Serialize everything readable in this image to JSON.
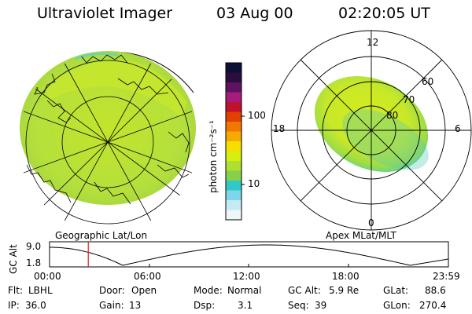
{
  "header": {
    "instrument": "Ultraviolet Imager",
    "date": "03 Aug 00",
    "time": "02:20:05 UT"
  },
  "colors": {
    "accent_line": "#e0201a",
    "image_fill": "#b7e33a",
    "image_dim": "#9ed13c",
    "background": "#ffffff"
  },
  "left_panel": {
    "label": "Geographic Lat/Lon"
  },
  "colorbar": {
    "unit_label": "photon cm⁻²s⁻¹",
    "ticks": [
      "100",
      "10"
    ],
    "scale": "log",
    "colors": [
      "#0b1034",
      "#2b0d40",
      "#5e1360",
      "#a61c7d",
      "#c0122a",
      "#e04000",
      "#f07800",
      "#f6aa00",
      "#f7de00",
      "#d6ee10",
      "#aee030",
      "#88d04a",
      "#30c8c8",
      "#7dd6ea",
      "#c5eaf4",
      "#eef6f8"
    ]
  },
  "right_panel": {
    "label": "Apex MLat/MLT",
    "mlt_labels": {
      "top": "12",
      "left": "18",
      "right": "6",
      "bottom": "0"
    },
    "lat_labels": [
      "60",
      "70",
      "80"
    ]
  },
  "alt_plot": {
    "ylabel": "GC Alt",
    "yticks": [
      "9.0",
      "1.8"
    ],
    "xticks": [
      "00:00",
      "06:00",
      "12:00",
      "18:00",
      "23:59"
    ],
    "current_time_hours": 2.33
  },
  "status": {
    "flt_label": "Flt:",
    "flt": "LBHL",
    "ip_label": "IP:",
    "ip": "36.0",
    "door_label": "Door:",
    "door": "Open",
    "gain_label": "Gain:",
    "gain": "13",
    "mode_label": "Mode:",
    "mode": "Normal",
    "dsp_label": "Dsp:",
    "dsp": "3.1",
    "gcalt_label": "GC Alt:",
    "gcalt": "5.9 Re",
    "seq_label": "Seq:",
    "seq": "39",
    "glat_label": "GLat:",
    "glat": "88.6",
    "glon_label": "GLon:",
    "glon": "270.4"
  }
}
